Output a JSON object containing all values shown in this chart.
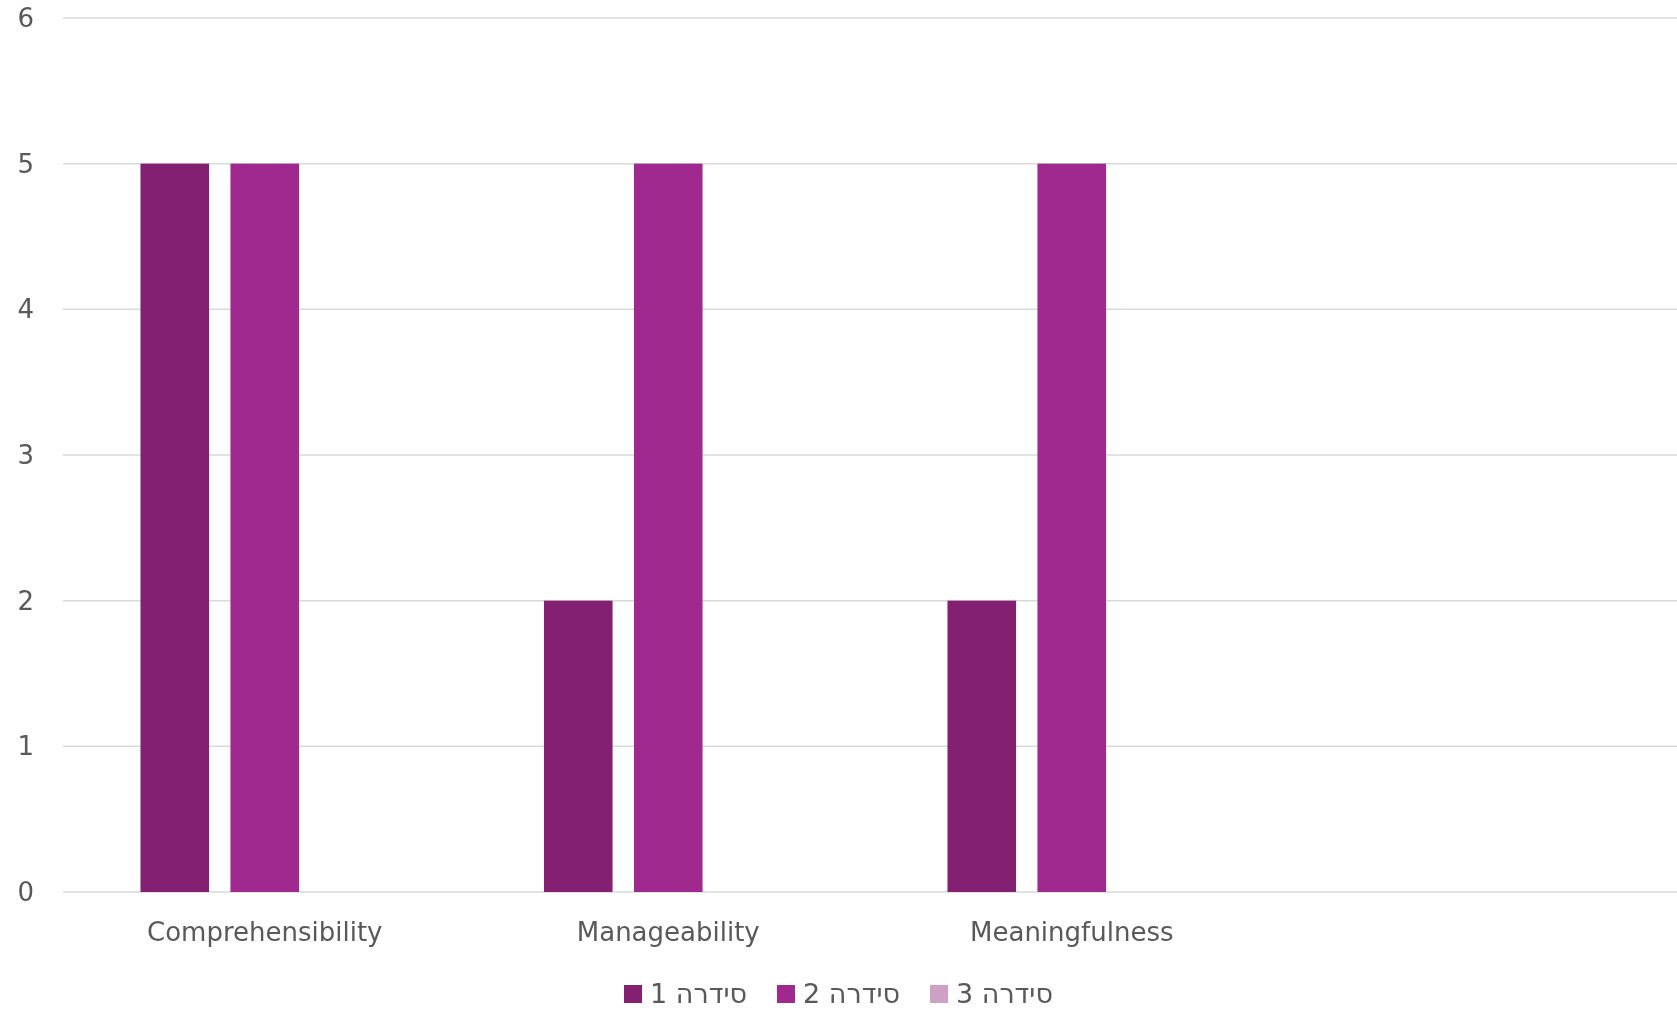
{
  "chart_data": {
    "type": "bar",
    "categories": [
      "Comprehensibility",
      "Manageability",
      "Meaningfulness",
      null
    ],
    "series": [
      {
        "name": "סידרה 1",
        "color": "#832072",
        "values": [
          5,
          2,
          2,
          null
        ]
      },
      {
        "name": "סידרה 2",
        "color": "#A0298F",
        "values": [
          5,
          5,
          5,
          null
        ]
      },
      {
        "name": "סידרה 3",
        "color": "#CDA0C4",
        "values": [
          null,
          null,
          null,
          null
        ]
      }
    ],
    "ylim": [
      0,
      6
    ],
    "yticks": [
      0,
      1,
      2,
      3,
      4,
      5,
      6
    ],
    "grid": "y",
    "legend": "bottom"
  }
}
